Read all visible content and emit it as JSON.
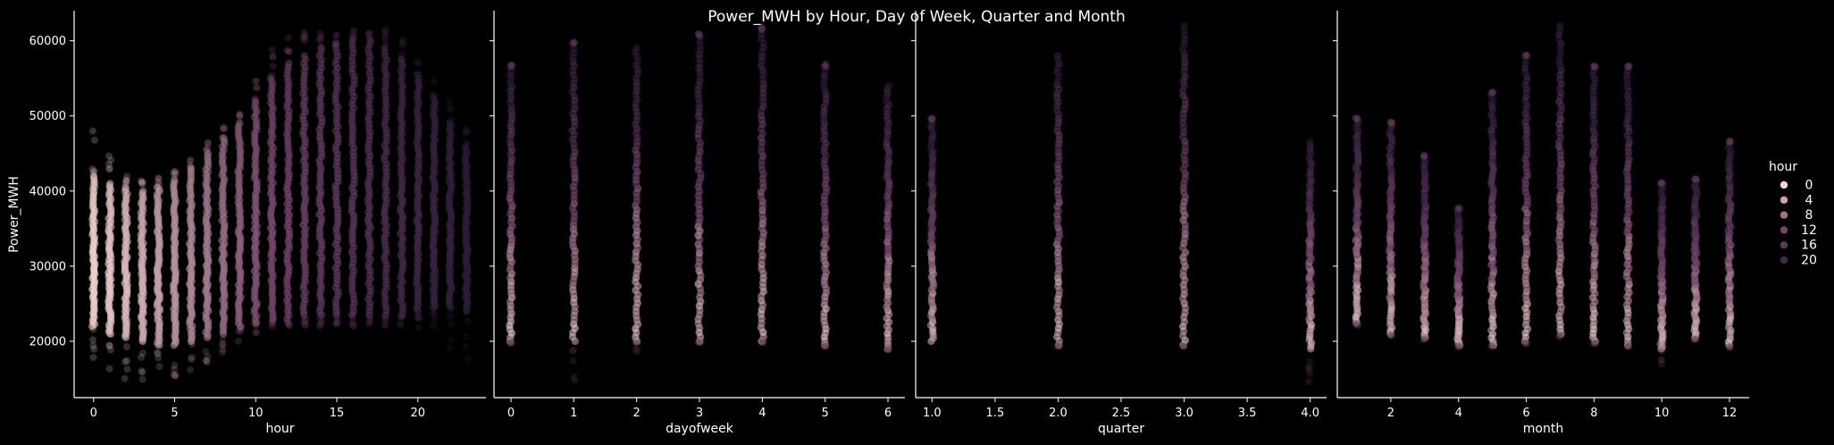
{
  "chart_data": {
    "type": "scatter",
    "title": "Power_MWH by Hour, Day of Week, Quarter and Month",
    "ylabel": "Power_MWH",
    "ylim": [
      12500,
      64000
    ],
    "yticks": [
      20000,
      30000,
      40000,
      50000,
      60000
    ],
    "ytick_labels": [
      "20000",
      "30000",
      "40000",
      "50000",
      "60000"
    ],
    "hue": "hour",
    "palette": {
      "light": "#f2d4cf",
      "dark": "#2e1e3c"
    },
    "legend": {
      "title": "hour",
      "placement": "right",
      "entries": [
        {
          "label": "0",
          "value": 0
        },
        {
          "label": "4",
          "value": 4
        },
        {
          "label": "8",
          "value": 8
        },
        {
          "label": "12",
          "value": 12
        },
        {
          "label": "16",
          "value": 16
        },
        {
          "label": "20",
          "value": 20
        }
      ]
    },
    "panels": [
      {
        "xlabel": "hour",
        "xlim": [
          -1.2,
          24.2
        ],
        "xticks": [
          0,
          5,
          10,
          15,
          20
        ],
        "xtick_labels": [
          "0",
          "5",
          "10",
          "15",
          "20"
        ],
        "x": [
          0,
          1,
          2,
          3,
          4,
          5,
          6,
          7,
          8,
          9,
          10,
          11,
          12,
          13,
          14,
          15,
          16,
          17,
          18,
          19,
          20,
          21,
          22,
          23
        ],
        "y_min": [
          22000,
          21000,
          20500,
          20000,
          19500,
          19500,
          20000,
          20500,
          21000,
          22000,
          22500,
          23000,
          23000,
          23500,
          23500,
          23500,
          23500,
          23500,
          23500,
          23500,
          24000,
          24500,
          24500,
          24000
        ],
        "y_max": [
          42000,
          41000,
          40500,
          40000,
          40500,
          41500,
          43000,
          45000,
          47000,
          49000,
          52000,
          55000,
          57000,
          58000,
          59000,
          59500,
          60000,
          60000,
          59000,
          57500,
          55000,
          52000,
          49000,
          46000
        ],
        "outlier_min": [
          15800,
          15200,
          15000,
          14700,
          14700,
          15000,
          16000,
          17000,
          18500,
          20000,
          21000,
          21500,
          22000,
          22000,
          22000,
          22000,
          22000,
          22000,
          22000,
          22000,
          21000,
          20000,
          19000,
          17500
        ],
        "outlier_max": [
          48000,
          45000,
          42000,
          41500,
          42000,
          43000,
          44500,
          47000,
          49000,
          51000,
          56000,
          59000,
          60500,
          61500,
          61500,
          61500,
          61500,
          61500,
          61500,
          60500,
          58000,
          55000,
          52000,
          49000
        ]
      },
      {
        "xlabel": "dayofweek",
        "xlim": [
          -0.27,
          6.27
        ],
        "xticks": [
          0,
          1,
          2,
          3,
          4,
          5,
          6
        ],
        "xtick_labels": [
          "0",
          "1",
          "2",
          "3",
          "4",
          "5",
          "6"
        ],
        "x": [
          0,
          1,
          2,
          3,
          4,
          5,
          6
        ],
        "y_min": [
          20000,
          20000,
          20000,
          20000,
          20000,
          19500,
          19000
        ],
        "y_max": [
          56500,
          59500,
          59000,
          60500,
          61500,
          56500,
          54000
        ],
        "outlier_min": [
          19000,
          14600,
          18200,
          19800,
          19800,
          19200,
          18800
        ],
        "outlier_max": [
          57000,
          60000,
          59000,
          61000,
          62000,
          57000,
          54000
        ]
      },
      {
        "xlabel": "quarter",
        "xlim": [
          0.87,
          4.13
        ],
        "xticks": [
          1.0,
          1.5,
          2.0,
          2.5,
          3.0,
          3.5,
          4.0
        ],
        "xtick_labels": [
          "1.0",
          "1.5",
          "2.0",
          "2.5",
          "3.0",
          "3.5",
          "4.0"
        ],
        "x": [
          1,
          2,
          3,
          4
        ],
        "y_min": [
          20000,
          19500,
          19500,
          19000
        ],
        "y_max": [
          49500,
          58000,
          62000,
          46500
        ],
        "outlier_min": [
          20000,
          19200,
          19300,
          14600
        ],
        "outlier_max": [
          49800,
          58000,
          62000,
          46500
        ]
      },
      {
        "xlabel": "month",
        "xlim": [
          0.42,
          12.58
        ],
        "xticks": [
          2,
          4,
          6,
          8,
          10,
          12
        ],
        "xtick_labels": [
          "2",
          "4",
          "6",
          "8",
          "10",
          "12"
        ],
        "x": [
          1,
          2,
          3,
          4,
          5,
          6,
          7,
          8,
          9,
          10,
          11,
          12
        ],
        "y_min": [
          22500,
          21000,
          20500,
          19500,
          19500,
          20000,
          21000,
          20000,
          19500,
          19000,
          20500,
          19500
        ],
        "y_max": [
          49500,
          49000,
          44500,
          37500,
          53000,
          58000,
          62000,
          56500,
          56500,
          41000,
          41500,
          46500
        ],
        "outlier_min": [
          22000,
          20500,
          20000,
          19200,
          19200,
          19500,
          20500,
          19600,
          19200,
          14600,
          20200,
          19100
        ],
        "outlier_max": [
          49800,
          49200,
          44800,
          37800,
          53200,
          58200,
          62000,
          56700,
          56700,
          41200,
          41700,
          46700
        ]
      }
    ]
  }
}
